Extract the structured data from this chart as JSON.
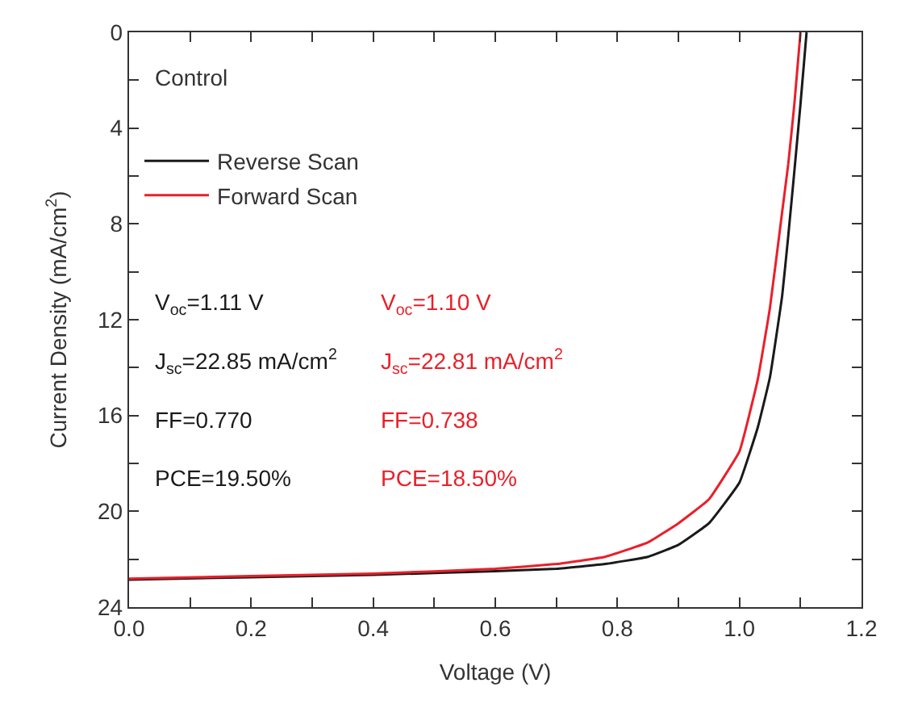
{
  "chart_data": {
    "type": "line",
    "xlabel": "Voltage (V)",
    "ylabel": "Current Density (mA/cm$^{2}$)",
    "x": [
      0,
      0.2,
      0.4,
      0.6,
      0.7,
      0.78,
      0.85,
      0.9,
      0.95,
      1.0,
      1.03,
      1.05,
      1.07,
      1.08,
      1.09,
      1.1,
      1.11
    ],
    "series": [
      {
        "name": "Reverse Scan",
        "color": "#1a1a1a",
        "values": [
          22.85,
          22.75,
          22.65,
          22.5,
          22.4,
          22.2,
          21.9,
          21.4,
          20.5,
          18.8,
          16.5,
          14.4,
          11,
          8.5,
          5.8,
          3,
          0
        ]
      },
      {
        "name": "Forward Scan",
        "color": "#e8202a",
        "x": [
          0,
          0.2,
          0.4,
          0.6,
          0.7,
          0.78,
          0.85,
          0.9,
          0.95,
          1.0,
          1.03,
          1.05,
          1.07,
          1.08,
          1.09,
          1.1
        ],
        "values": [
          22.81,
          22.7,
          22.6,
          22.4,
          22.2,
          21.9,
          21.3,
          20.5,
          19.5,
          17.5,
          14.5,
          11.5,
          7.5,
          5.5,
          3,
          0
        ]
      }
    ],
    "xlim": [
      0,
      1.2
    ],
    "xticks": [
      {
        "value": 0,
        "label": "0.0"
      },
      {
        "value": 0.1,
        "label": null
      },
      {
        "value": 0.2,
        "label": "0.2"
      },
      {
        "value": 0.3,
        "label": null
      },
      {
        "value": 0.4,
        "label": "0.4"
      },
      {
        "value": 0.5,
        "label": null
      },
      {
        "value": 0.6,
        "label": "0.6"
      },
      {
        "value": 0.7,
        "label": null
      },
      {
        "value": 0.8,
        "label": "0.8"
      },
      {
        "value": 0.9,
        "label": null
      },
      {
        "value": 1.0,
        "label": "1.0"
      },
      {
        "value": 1.1,
        "label": null
      },
      {
        "value": 1.2,
        "label": "1.2"
      }
    ],
    "ylim": [
      24,
      0
    ],
    "yticks": [
      0,
      {
        "value": 2,
        "label": null
      },
      4,
      {
        "value": 6,
        "label": null
      },
      8,
      {
        "value": 10,
        "label": null
      },
      12,
      {
        "value": 14,
        "label": null
      },
      16,
      {
        "value": 18,
        "label": null
      },
      20,
      {
        "value": 22,
        "label": null
      },
      24
    ],
    "annotations": [
      "Control",
      "V$_{oc}$=1.11 V\nJ$_{sc}$=22.85 mA/cm$^{2}$\nFF=0.770\nPCE=19.50%",
      "V$_{oc}$=1.10 V\nJ$_{sc}$=22.81 mA/cm$^{2}$\nFF=0.738\nPCE=18.50%"
    ],
    "legend": "top left",
    "marker": "none",
    "line_style": "solid"
  }
}
